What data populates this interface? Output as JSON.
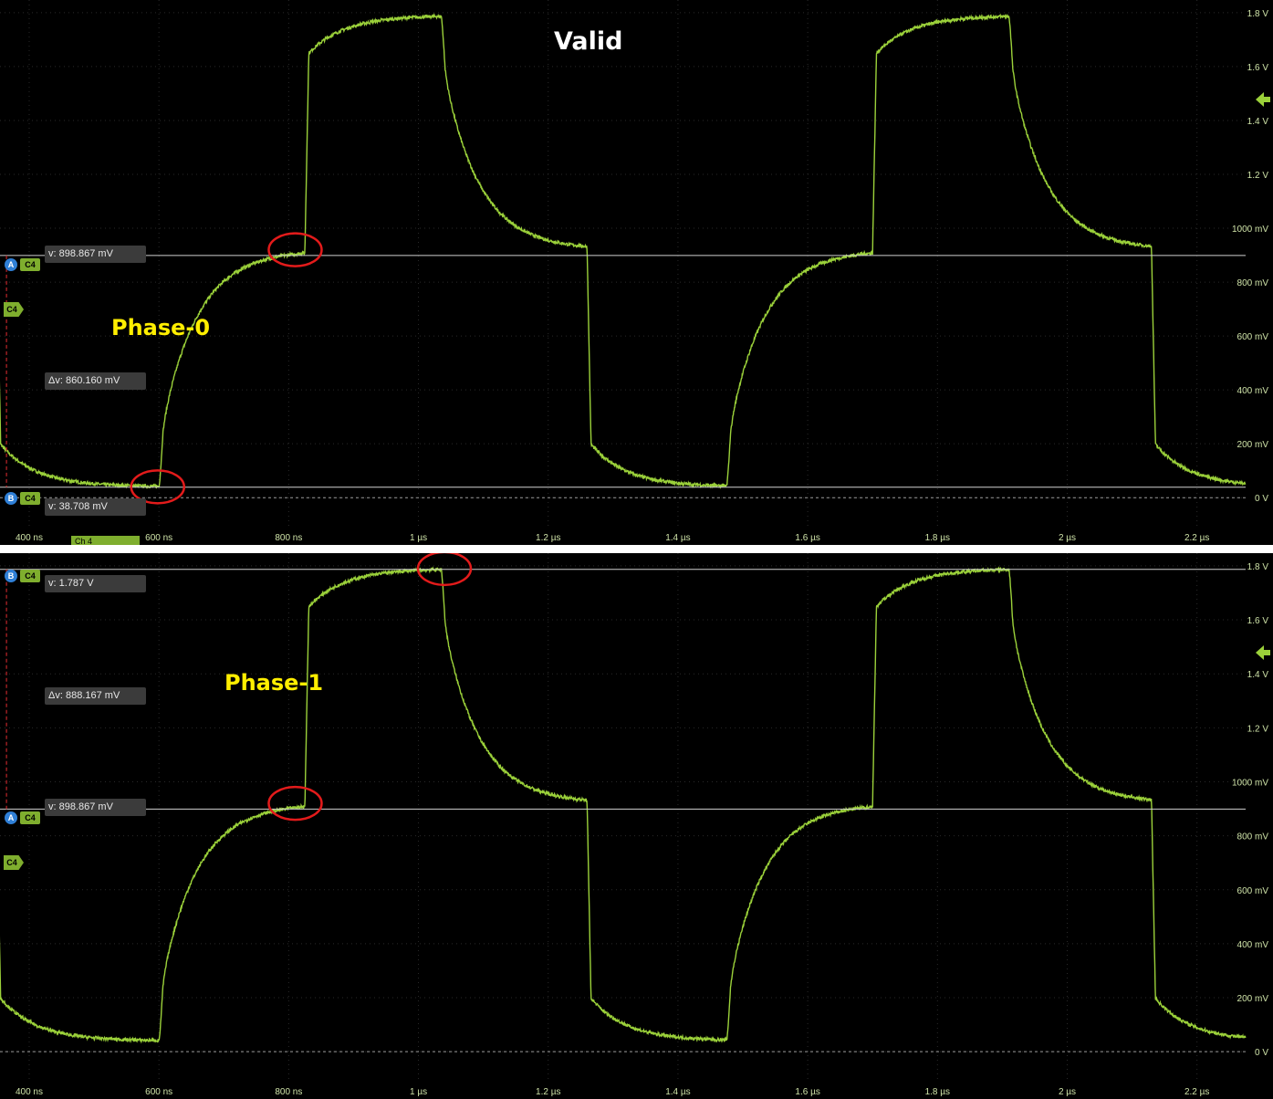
{
  "chart_data": [
    {
      "type": "line",
      "title": "Valid",
      "annotation": "Phase-0",
      "xlabel": "",
      "ylabel": "",
      "x_unit": "ns",
      "xlim": [
        355,
        2275
      ],
      "ylim": [
        -0.04,
        1.82
      ],
      "x_ticks": [
        400,
        600,
        800,
        1000,
        1200,
        1400,
        1600,
        1800,
        2000,
        2200
      ],
      "x_tick_labels": [
        "400 ns",
        "600 ns",
        "800 ns",
        "1 µs",
        "1.2 µs",
        "1.4 µs",
        "1.6 µs",
        "1.8 µs",
        "2 µs",
        "2.2 µs"
      ],
      "y_ticks": [
        0,
        0.2,
        0.4,
        0.6,
        0.8,
        1.0,
        1.2,
        1.4,
        1.6,
        1.8
      ],
      "y_tick_labels": [
        "0 V",
        "200 mV",
        "400 mV",
        "600 mV",
        "800 mV",
        "1000 mV",
        "1.2 V",
        "1.4 V",
        "1.6 V",
        "1.8 V"
      ],
      "grid": true,
      "series": [
        {
          "edges": [
            [
              350,
              "fall"
            ],
            [
              600,
              "rise"
            ],
            [
              825,
              "rise"
            ],
            [
              1035,
              "fall"
            ],
            [
              1260,
              "fall"
            ],
            [
              1475,
              "rise"
            ],
            [
              1700,
              "rise"
            ],
            [
              1910,
              "fall"
            ],
            [
              2130,
              "fall"
            ]
          ]
        }
      ],
      "cursors": [
        {
          "id": "A",
          "label": "v: 898.867 mV",
          "value": 0.898867
        },
        {
          "id": "B",
          "label": "v: 38.708 mV",
          "value": 0.038708
        }
      ],
      "delta_label": "Δv: 860.160 mV",
      "cursor_x": 365,
      "highlights": [
        [
          810,
          0.92
        ],
        [
          598,
          0.04
        ]
      ],
      "channel_label": "Ch 4"
    },
    {
      "type": "line",
      "title": "",
      "annotation": "Phase-1",
      "xlabel": "",
      "ylabel": "",
      "x_unit": "ns",
      "xlim": [
        355,
        2275
      ],
      "ylim": [
        -0.04,
        1.82
      ],
      "x_ticks": [
        400,
        600,
        800,
        1000,
        1200,
        1400,
        1600,
        1800,
        2000,
        2200
      ],
      "x_tick_labels": [
        "400 ns",
        "600 ns",
        "800 ns",
        "1 µs",
        "1.2 µs",
        "1.4 µs",
        "1.6 µs",
        "1.8 µs",
        "2 µs",
        "2.2 µs"
      ],
      "y_ticks": [
        0,
        0.2,
        0.4,
        0.6,
        0.8,
        1.0,
        1.2,
        1.4,
        1.6,
        1.8
      ],
      "y_tick_labels": [
        "0 V",
        "200 mV",
        "400 mV",
        "600 mV",
        "800 mV",
        "1000 mV",
        "1.2 V",
        "1.4 V",
        "1.6 V",
        "1.8 V"
      ],
      "grid": true,
      "series": [
        {
          "edges": [
            [
              350,
              "fall"
            ],
            [
              600,
              "rise"
            ],
            [
              825,
              "rise"
            ],
            [
              1035,
              "fall"
            ],
            [
              1260,
              "fall"
            ],
            [
              1475,
              "rise"
            ],
            [
              1700,
              "rise"
            ],
            [
              1910,
              "fall"
            ],
            [
              2130,
              "fall"
            ]
          ]
        }
      ],
      "cursors": [
        {
          "id": "B",
          "label": "v: 1.787 V",
          "value": 1.787
        },
        {
          "id": "A",
          "label": "v: 898.867 mV",
          "value": 0.898867
        }
      ],
      "delta_label": "Δv: 888.167 mV",
      "cursor_x": 365,
      "highlights": [
        [
          1040,
          1.79
        ],
        [
          810,
          0.92
        ]
      ],
      "channel_label": ""
    }
  ],
  "colors": {
    "trace": "#9bd13a",
    "cursor_line": "#d0d0d0",
    "highlight": "#e31b1b",
    "title": "#ffffff",
    "annotation": "#ffee00",
    "tick_label": "#cfe3a8"
  },
  "tags": {
    "a": "A",
    "b": "B",
    "c4": "C4"
  }
}
